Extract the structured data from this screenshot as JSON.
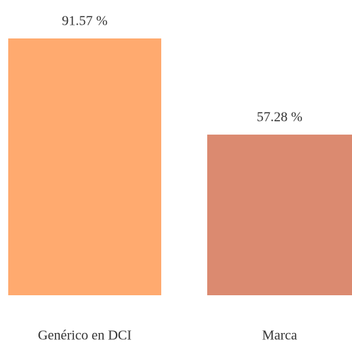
{
  "chart_data": {
    "type": "bar",
    "categories": [
      "Genérico en DCI",
      "Marca"
    ],
    "values": [
      91.57,
      57.28
    ],
    "value_labels": [
      "91.57 %",
      "57.28 %"
    ],
    "colors": [
      "#ffaa6f",
      "#db8a70"
    ]
  }
}
